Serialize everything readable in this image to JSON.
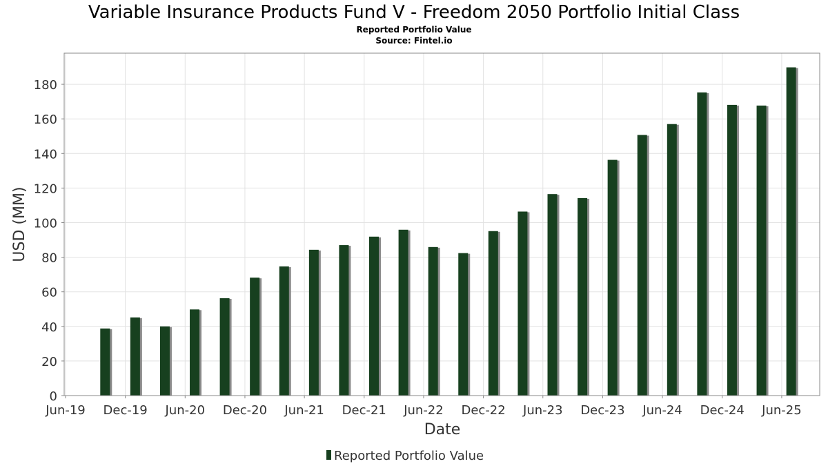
{
  "chart_data": {
    "type": "bar",
    "title": "Variable Insurance Products Fund V - Freedom 2050 Portfolio Initial Class",
    "subtitle": "Reported Portfolio Value",
    "source": "Source: Fintel.io",
    "xlabel": "Date",
    "ylabel": "USD (MM)",
    "ylim": [
      0,
      198
    ],
    "yticks": [
      0,
      20,
      40,
      60,
      80,
      100,
      120,
      140,
      160,
      180
    ],
    "xlim": [
      "2019-06-01",
      "2025-08-31"
    ],
    "xticks": [
      {
        "date": "2019-06-01",
        "label": "Jun-19"
      },
      {
        "date": "2019-12-01",
        "label": "Dec-19"
      },
      {
        "date": "2020-06-01",
        "label": "Jun-20"
      },
      {
        "date": "2020-12-01",
        "label": "Dec-20"
      },
      {
        "date": "2021-06-01",
        "label": "Jun-21"
      },
      {
        "date": "2021-12-01",
        "label": "Dec-21"
      },
      {
        "date": "2022-06-01",
        "label": "Jun-22"
      },
      {
        "date": "2022-12-01",
        "label": "Dec-22"
      },
      {
        "date": "2023-06-01",
        "label": "Jun-23"
      },
      {
        "date": "2023-12-01",
        "label": "Dec-23"
      },
      {
        "date": "2024-06-01",
        "label": "Jun-24"
      },
      {
        "date": "2024-12-01",
        "label": "Dec-24"
      },
      {
        "date": "2025-06-01",
        "label": "Jun-25"
      }
    ],
    "grid": true,
    "legend": "bottom-center",
    "series": [
      {
        "name": "Reported Portfolio Value",
        "color": "#17401f",
        "points": [
          {
            "x": "2019-09-30",
            "y": 38.8
          },
          {
            "x": "2019-12-31",
            "y": 45.2
          },
          {
            "x": "2020-03-31",
            "y": 40.0
          },
          {
            "x": "2020-06-30",
            "y": 49.8
          },
          {
            "x": "2020-09-30",
            "y": 56.3
          },
          {
            "x": "2020-12-31",
            "y": 68.2
          },
          {
            "x": "2021-03-31",
            "y": 74.7
          },
          {
            "x": "2021-06-30",
            "y": 84.3
          },
          {
            "x": "2021-09-30",
            "y": 87.0
          },
          {
            "x": "2021-12-31",
            "y": 91.9
          },
          {
            "x": "2022-03-31",
            "y": 95.9
          },
          {
            "x": "2022-06-30",
            "y": 85.9
          },
          {
            "x": "2022-09-30",
            "y": 82.4
          },
          {
            "x": "2022-12-31",
            "y": 95.1
          },
          {
            "x": "2023-03-31",
            "y": 106.4
          },
          {
            "x": "2023-06-30",
            "y": 116.5
          },
          {
            "x": "2023-09-30",
            "y": 114.2
          },
          {
            "x": "2023-12-31",
            "y": 136.3
          },
          {
            "x": "2024-03-31",
            "y": 150.7
          },
          {
            "x": "2024-06-30",
            "y": 157.0
          },
          {
            "x": "2024-09-30",
            "y": 175.3
          },
          {
            "x": "2024-12-31",
            "y": 168.1
          },
          {
            "x": "2025-03-31",
            "y": 167.7
          },
          {
            "x": "2025-06-30",
            "y": 189.8
          }
        ]
      }
    ]
  }
}
